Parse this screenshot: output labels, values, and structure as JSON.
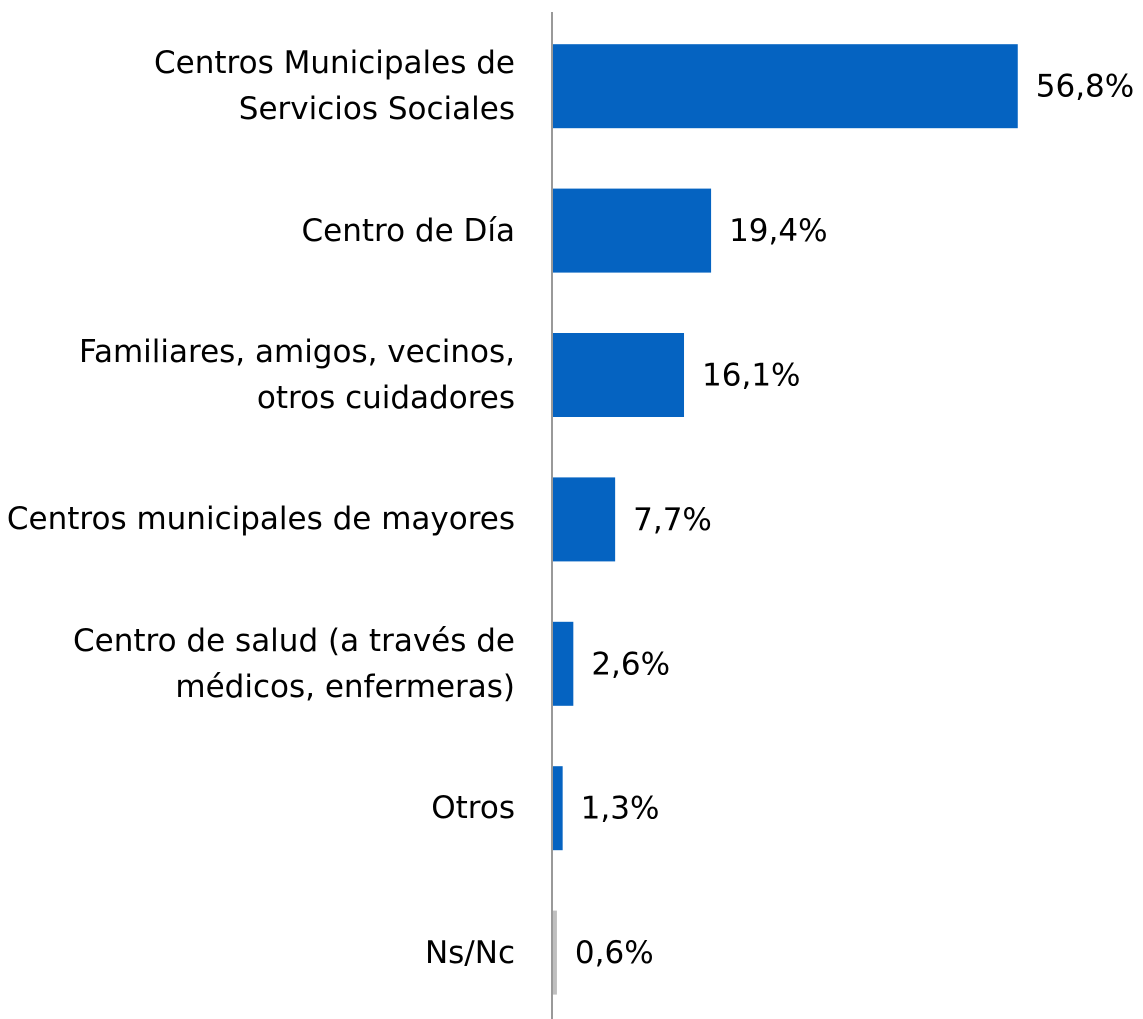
{
  "chart_data": {
    "type": "bar",
    "orientation": "horizontal",
    "categories": [
      "Centros Municipales de Servicios Sociales",
      "Centro de Día",
      "Familiares, amigos, vecinos, otros cuidadores",
      "Centros municipales de mayores",
      "Centro de salud (a través de médicos, enfermeras)",
      "Otros",
      "Ns/Nc"
    ],
    "values": [
      56.8,
      19.4,
      16.1,
      7.7,
      2.6,
      1.3,
      0.6
    ],
    "value_labels": [
      "56,8%",
      "19,4%",
      "16,1%",
      "7,7%",
      "2,6%",
      "1,3%",
      "0,6%"
    ],
    "colors": [
      "#0563c1",
      "#0563c1",
      "#0563c1",
      "#0563c1",
      "#0563c1",
      "#0563c1",
      "#bfbfbf"
    ]
  }
}
